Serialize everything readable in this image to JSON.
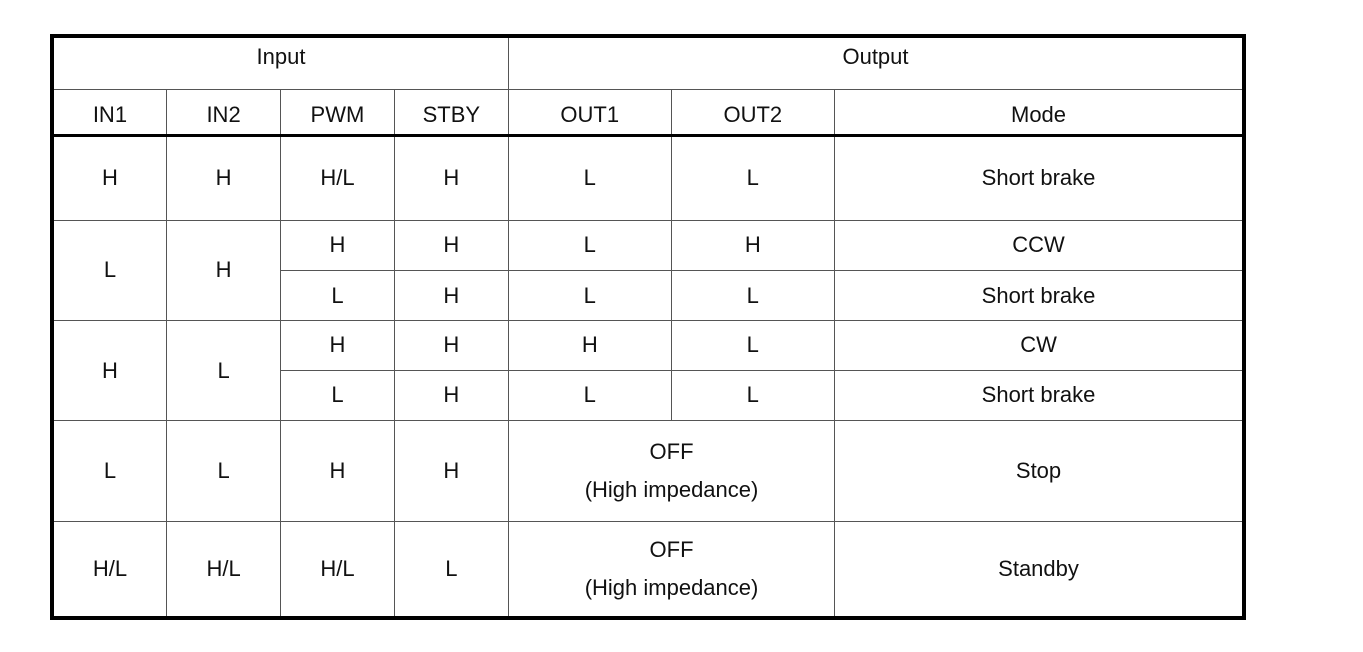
{
  "table": {
    "group_headers": {
      "input": "Input",
      "output": "Output"
    },
    "columns": [
      "IN1",
      "IN2",
      "PWM",
      "STBY",
      "OUT1",
      "OUT2",
      "Mode"
    ],
    "rows": [
      {
        "in1": "H",
        "in2": "H",
        "pwm": "H/L",
        "stby": "H",
        "out1": "L",
        "out2": "L",
        "mode": "Short brake"
      },
      {
        "in1": "L",
        "in2": "H",
        "pwm": "H",
        "stby": "H",
        "out1": "L",
        "out2": "H",
        "mode": "CCW"
      },
      {
        "pwm": "L",
        "stby": "H",
        "out1": "L",
        "out2": "L",
        "mode": "Short brake"
      },
      {
        "in1": "H",
        "in2": "L",
        "pwm": "H",
        "stby": "H",
        "out1": "H",
        "out2": "L",
        "mode": "CW"
      },
      {
        "pwm": "L",
        "stby": "H",
        "out1": "L",
        "out2": "L",
        "mode": "Short brake"
      },
      {
        "in1": "L",
        "in2": "L",
        "pwm": "H",
        "stby": "H",
        "out_line1": "OFF",
        "out_line2": "(High impedance)",
        "mode": "Stop"
      },
      {
        "in1": "H/L",
        "in2": "H/L",
        "pwm": "H/L",
        "stby": "L",
        "out_line1": "OFF",
        "out_line2": "(High impedance)",
        "mode": "Standby"
      }
    ]
  }
}
